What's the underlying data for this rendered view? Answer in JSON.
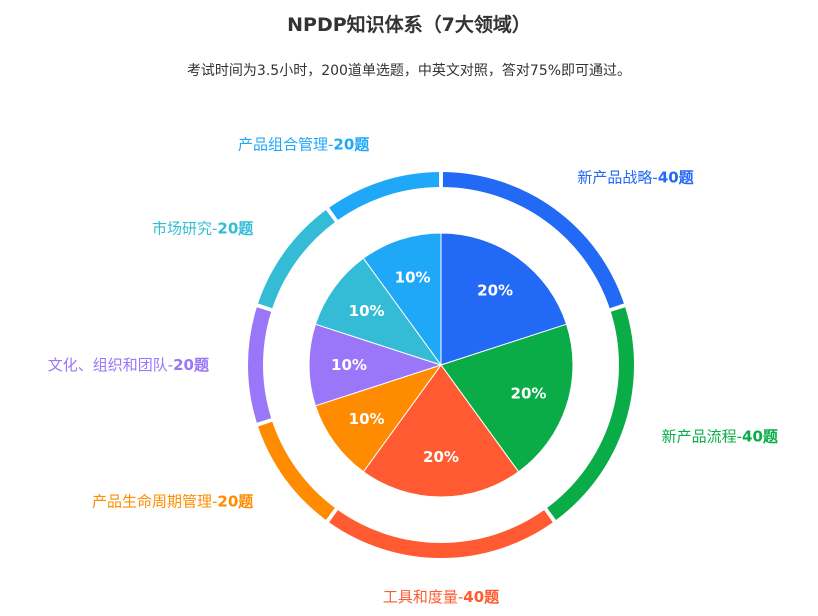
{
  "header": {
    "title": "NPDP知识体系（7大领域）",
    "subtitle": "考试时间为3.5小时，200道单选题，中英文对照，答对75%即可通过。"
  },
  "chart_data": {
    "type": "pie",
    "title": "NPDP知识体系（7大领域）",
    "subtitle": "考试时间为3.5小时，200道单选题，中英文对照，答对75%即可通过。",
    "total_questions": 200,
    "slices": [
      {
        "name": "新产品战略",
        "count": 40,
        "unit": "题",
        "percent": 20,
        "percent_label": "20%",
        "color": "#2269f5"
      },
      {
        "name": "新产品流程",
        "count": 40,
        "unit": "题",
        "percent": 20,
        "percent_label": "20%",
        "color": "#0aac47"
      },
      {
        "name": "工具和度量",
        "count": 40,
        "unit": "题",
        "percent": 20,
        "percent_label": "20%",
        "color": "#ff5a31"
      },
      {
        "name": "产品生命周期管理",
        "count": 20,
        "unit": "题",
        "percent": 10,
        "percent_label": "10%",
        "color": "#ff8c00"
      },
      {
        "name": "文化、组织和团队",
        "count": 20,
        "unit": "题",
        "percent": 10,
        "percent_label": "10%",
        "color": "#9a76f8"
      },
      {
        "name": "市场研究",
        "count": 20,
        "unit": "题",
        "percent": 10,
        "percent_label": "10%",
        "color": "#34bcd6"
      },
      {
        "name": "产品组合管理",
        "count": 20,
        "unit": "题",
        "percent": 10,
        "percent_label": "10%",
        "color": "#20a8f8"
      }
    ]
  }
}
